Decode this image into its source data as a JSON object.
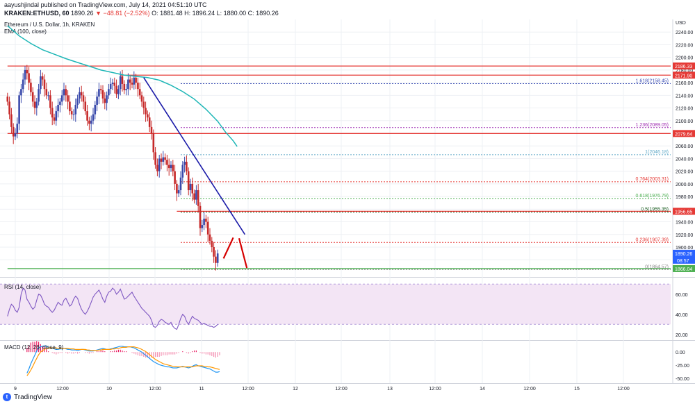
{
  "header": {
    "author": "aayushjindal",
    "published_text": "published on TradingView.com, July 14, 2021 04:51:10 UTC",
    "symbol": "KRAKEN:ETHUSD, 60",
    "last": "1890.26",
    "change": "▼ −48.81 (−2.52%)",
    "ohlc": "O: 1881.48  H: 1896.24  L: 1880.00  C: 1890.26"
  },
  "footer": {
    "brand": "TradingView"
  },
  "chart_data": [
    {
      "type": "candlestick",
      "title": "Ethereum / U.S. Dollar, 1h, KRAKEN",
      "indicator_label": "EMA (100, close)",
      "currency": "USD",
      "ylim": [
        1855,
        2260
      ],
      "y_ticks": [
        1880,
        1900,
        1920,
        1940,
        1960,
        1980,
        2000,
        2020,
        2040,
        2060,
        2080,
        2100,
        2120,
        2140,
        2160,
        2180,
        2200,
        2220,
        2240
      ],
      "x_ticks": [
        "9",
        "12:00",
        "10",
        "12:00",
        "11",
        "12:00",
        "12",
        "12:00",
        "13",
        "12:00",
        "14",
        "12:00",
        "15",
        "12:00"
      ],
      "price_labels": [
        {
          "value": 2186.33,
          "color": "#e53935"
        },
        {
          "value": 2171.9,
          "color": "#e53935"
        },
        {
          "value": 2079.64,
          "color": "#e53935"
        },
        {
          "value": 1956.65,
          "color": "#e53935"
        },
        {
          "value": 1890.26,
          "color": "#2962ff",
          "sub": "08:57"
        },
        {
          "value": 1866.04,
          "color": "#4caf50"
        }
      ],
      "horizontal_levels": [
        {
          "value": 2186.33,
          "color": "#e53935",
          "from_hour": -4
        },
        {
          "value": 2171.9,
          "color": "#e53935",
          "from_hour": 54
        },
        {
          "value": 2079.64,
          "color": "#e53935",
          "from_hour": -4
        },
        {
          "value": 1956.65,
          "color": "#e53935",
          "from_hour": 83
        },
        {
          "value": 1866.04,
          "color": "#4caf50",
          "from_hour": -4
        }
      ],
      "fibonacci": [
        {
          "label": "1.618(2158.45)",
          "value": 2158.45,
          "color": "#3f51b5"
        },
        {
          "label": "1.236(2089.05)",
          "value": 2089.05,
          "color": "#9c27b0"
        },
        {
          "label": "1(2046.18)",
          "value": 2046.18,
          "color": "#5fa8c7"
        },
        {
          "label": "0.764(2003.31)",
          "value": 2003.31,
          "color": "#e53935"
        },
        {
          "label": "0.618(1976.79)",
          "value": 1976.79,
          "color": "#4caf50"
        },
        {
          "label": "0.5(1955.35)",
          "value": 1955.35,
          "color": "#1b5e20"
        },
        {
          "label": "0.236(1907.39)",
          "value": 1907.39,
          "color": "#e53935"
        },
        {
          "label": "0(1864.57)",
          "value": 1864.57,
          "color": "#888888"
        }
      ],
      "trendline": {
        "from": [
          66,
          2168
        ],
        "to": [
          118,
          1920
        ],
        "color": "#1a1aa8"
      },
      "projection": {
        "points": [
          [
            107,
            1882
          ],
          [
            112,
            1915
          ],
          [
            115,
            1914
          ],
          [
            119,
            1867
          ]
        ],
        "color": "#d50000"
      },
      "ema": {
        "color": "#1db6b6",
        "points": [
          [
            -4,
            2250
          ],
          [
            2,
            2234
          ],
          [
            8,
            2222
          ],
          [
            14,
            2212
          ],
          [
            20,
            2205
          ],
          [
            26,
            2198
          ],
          [
            32,
            2192
          ],
          [
            38,
            2186
          ],
          [
            44,
            2180
          ],
          [
            50,
            2176
          ],
          [
            56,
            2172
          ],
          [
            62,
            2170
          ],
          [
            68,
            2168
          ],
          [
            74,
            2164
          ],
          [
            80,
            2156
          ],
          [
            86,
            2146
          ],
          [
            92,
            2134
          ],
          [
            98,
            2118
          ],
          [
            104,
            2099
          ],
          [
            108,
            2082
          ],
          [
            112,
            2068
          ],
          [
            114,
            2059
          ]
        ]
      },
      "candles_hourly_close": [
        2130,
        2110,
        2090,
        2075,
        2080,
        2095,
        2140,
        2150,
        2165,
        2180,
        2175,
        2160,
        2145,
        2130,
        2120,
        2130,
        2150,
        2170,
        2165,
        2150,
        2140,
        2140,
        2120,
        2105,
        2100,
        2115,
        2125,
        2130,
        2140,
        2150,
        2140,
        2130,
        2115,
        2110,
        2110,
        2125,
        2135,
        2145,
        2140,
        2130,
        2115,
        2100,
        2095,
        2100,
        2110,
        2125,
        2138,
        2150,
        2148,
        2135,
        2128,
        2140,
        2150,
        2158,
        2160,
        2155,
        2142,
        2150,
        2170,
        2158,
        2148,
        2150,
        2165,
        2160,
        2157,
        2168,
        2160,
        2150,
        2140,
        2130,
        2120,
        2110,
        2105,
        2090,
        2080,
        2050,
        2030,
        2020,
        2040,
        2035,
        2042,
        2038,
        2030,
        2025,
        2030,
        2020,
        2000,
        1985,
        1990,
        2010,
        2030,
        2035,
        2020,
        1990,
        2000,
        1985,
        1975,
        1990,
        1965,
        1930,
        1935,
        1945,
        1940,
        1920,
        1910,
        1900,
        1885,
        1875,
        1890
      ],
      "panels": [
        {
          "type": "line",
          "title": "RSI (14, close)",
          "ylim": [
            15,
            75
          ],
          "y_ticks": [
            20.0,
            40.0,
            60.0
          ],
          "band": [
            30,
            70
          ],
          "color": "#7e57c2",
          "values": [
            38,
            45,
            50,
            48,
            44,
            42,
            47,
            60,
            66,
            64,
            55,
            52,
            48,
            45,
            47,
            54,
            60,
            59,
            55,
            50,
            48,
            47,
            44,
            42,
            44,
            48,
            52,
            50,
            49,
            54,
            56,
            52,
            48,
            50,
            55,
            58,
            56,
            50,
            45,
            42,
            40,
            43,
            47,
            52,
            57,
            60,
            62,
            64,
            60,
            55,
            52,
            58,
            62,
            63,
            66,
            64,
            60,
            62,
            65,
            60,
            55,
            56,
            58,
            60,
            62,
            58,
            55,
            52,
            49,
            46,
            44,
            42,
            40,
            38,
            34,
            28,
            27,
            29,
            33,
            35,
            34,
            32,
            31,
            30,
            32,
            28,
            26,
            25,
            30,
            36,
            40,
            38,
            33,
            30,
            34,
            38,
            36,
            35,
            34,
            32,
            30,
            31,
            30,
            29,
            28,
            28,
            27,
            28,
            30
          ]
        },
        {
          "type": "macd",
          "title": "MACD (12, 26, close, 9)",
          "ylim": [
            -55,
            20
          ],
          "y_ticks": [
            0.0,
            -25.0,
            -50.0
          ],
          "colors": {
            "macd": "#2196f3",
            "signal": "#ff9800",
            "histogram": "#e91e63"
          },
          "macd_values": [
            -40,
            -32,
            -22,
            -14,
            -6,
            2,
            8,
            10,
            11,
            12,
            11,
            9,
            8,
            7,
            6,
            5,
            5,
            6,
            6,
            7,
            6,
            5,
            5,
            4,
            4,
            4,
            3,
            4,
            5,
            5,
            4,
            3,
            2,
            2,
            2,
            3,
            4,
            5,
            6,
            7,
            6,
            5,
            5,
            6,
            7,
            8,
            9,
            10,
            11,
            11,
            10,
            10,
            10,
            10,
            9,
            8,
            6,
            4,
            2,
            0,
            -3,
            -6,
            -9,
            -12,
            -15,
            -18,
            -20,
            -22,
            -24,
            -25,
            -26,
            -27,
            -28,
            -28,
            -29,
            -30,
            -30,
            -30,
            -29,
            -28,
            -27,
            -28,
            -29,
            -30,
            -29,
            -27,
            -25,
            -24,
            -26,
            -27,
            -28,
            -29,
            -30,
            -31,
            -32,
            -34,
            -36,
            -38,
            -38,
            -37
          ],
          "signal_values": [
            -45,
            -40,
            -34,
            -27,
            -19,
            -12,
            -5,
            0,
            3,
            5,
            7,
            8,
            8,
            8,
            8,
            8,
            7,
            7,
            7,
            7,
            7,
            7,
            6,
            6,
            6,
            5,
            5,
            5,
            5,
            5,
            5,
            4,
            4,
            3,
            3,
            3,
            3,
            4,
            4,
            5,
            5,
            5,
            5,
            5,
            6,
            6,
            7,
            7,
            8,
            9,
            9,
            9,
            10,
            10,
            10,
            10,
            9,
            8,
            7,
            5,
            3,
            1,
            -2,
            -5,
            -8,
            -11,
            -14,
            -16,
            -18,
            -20,
            -22,
            -23,
            -24,
            -25,
            -26,
            -27,
            -27,
            -28,
            -28,
            -28,
            -28,
            -28,
            -28,
            -28,
            -28,
            -28,
            -27,
            -26,
            -26,
            -26,
            -26,
            -27,
            -27,
            -28,
            -28,
            -29,
            -30,
            -31,
            -32,
            -33
          ]
        }
      ]
    }
  ]
}
